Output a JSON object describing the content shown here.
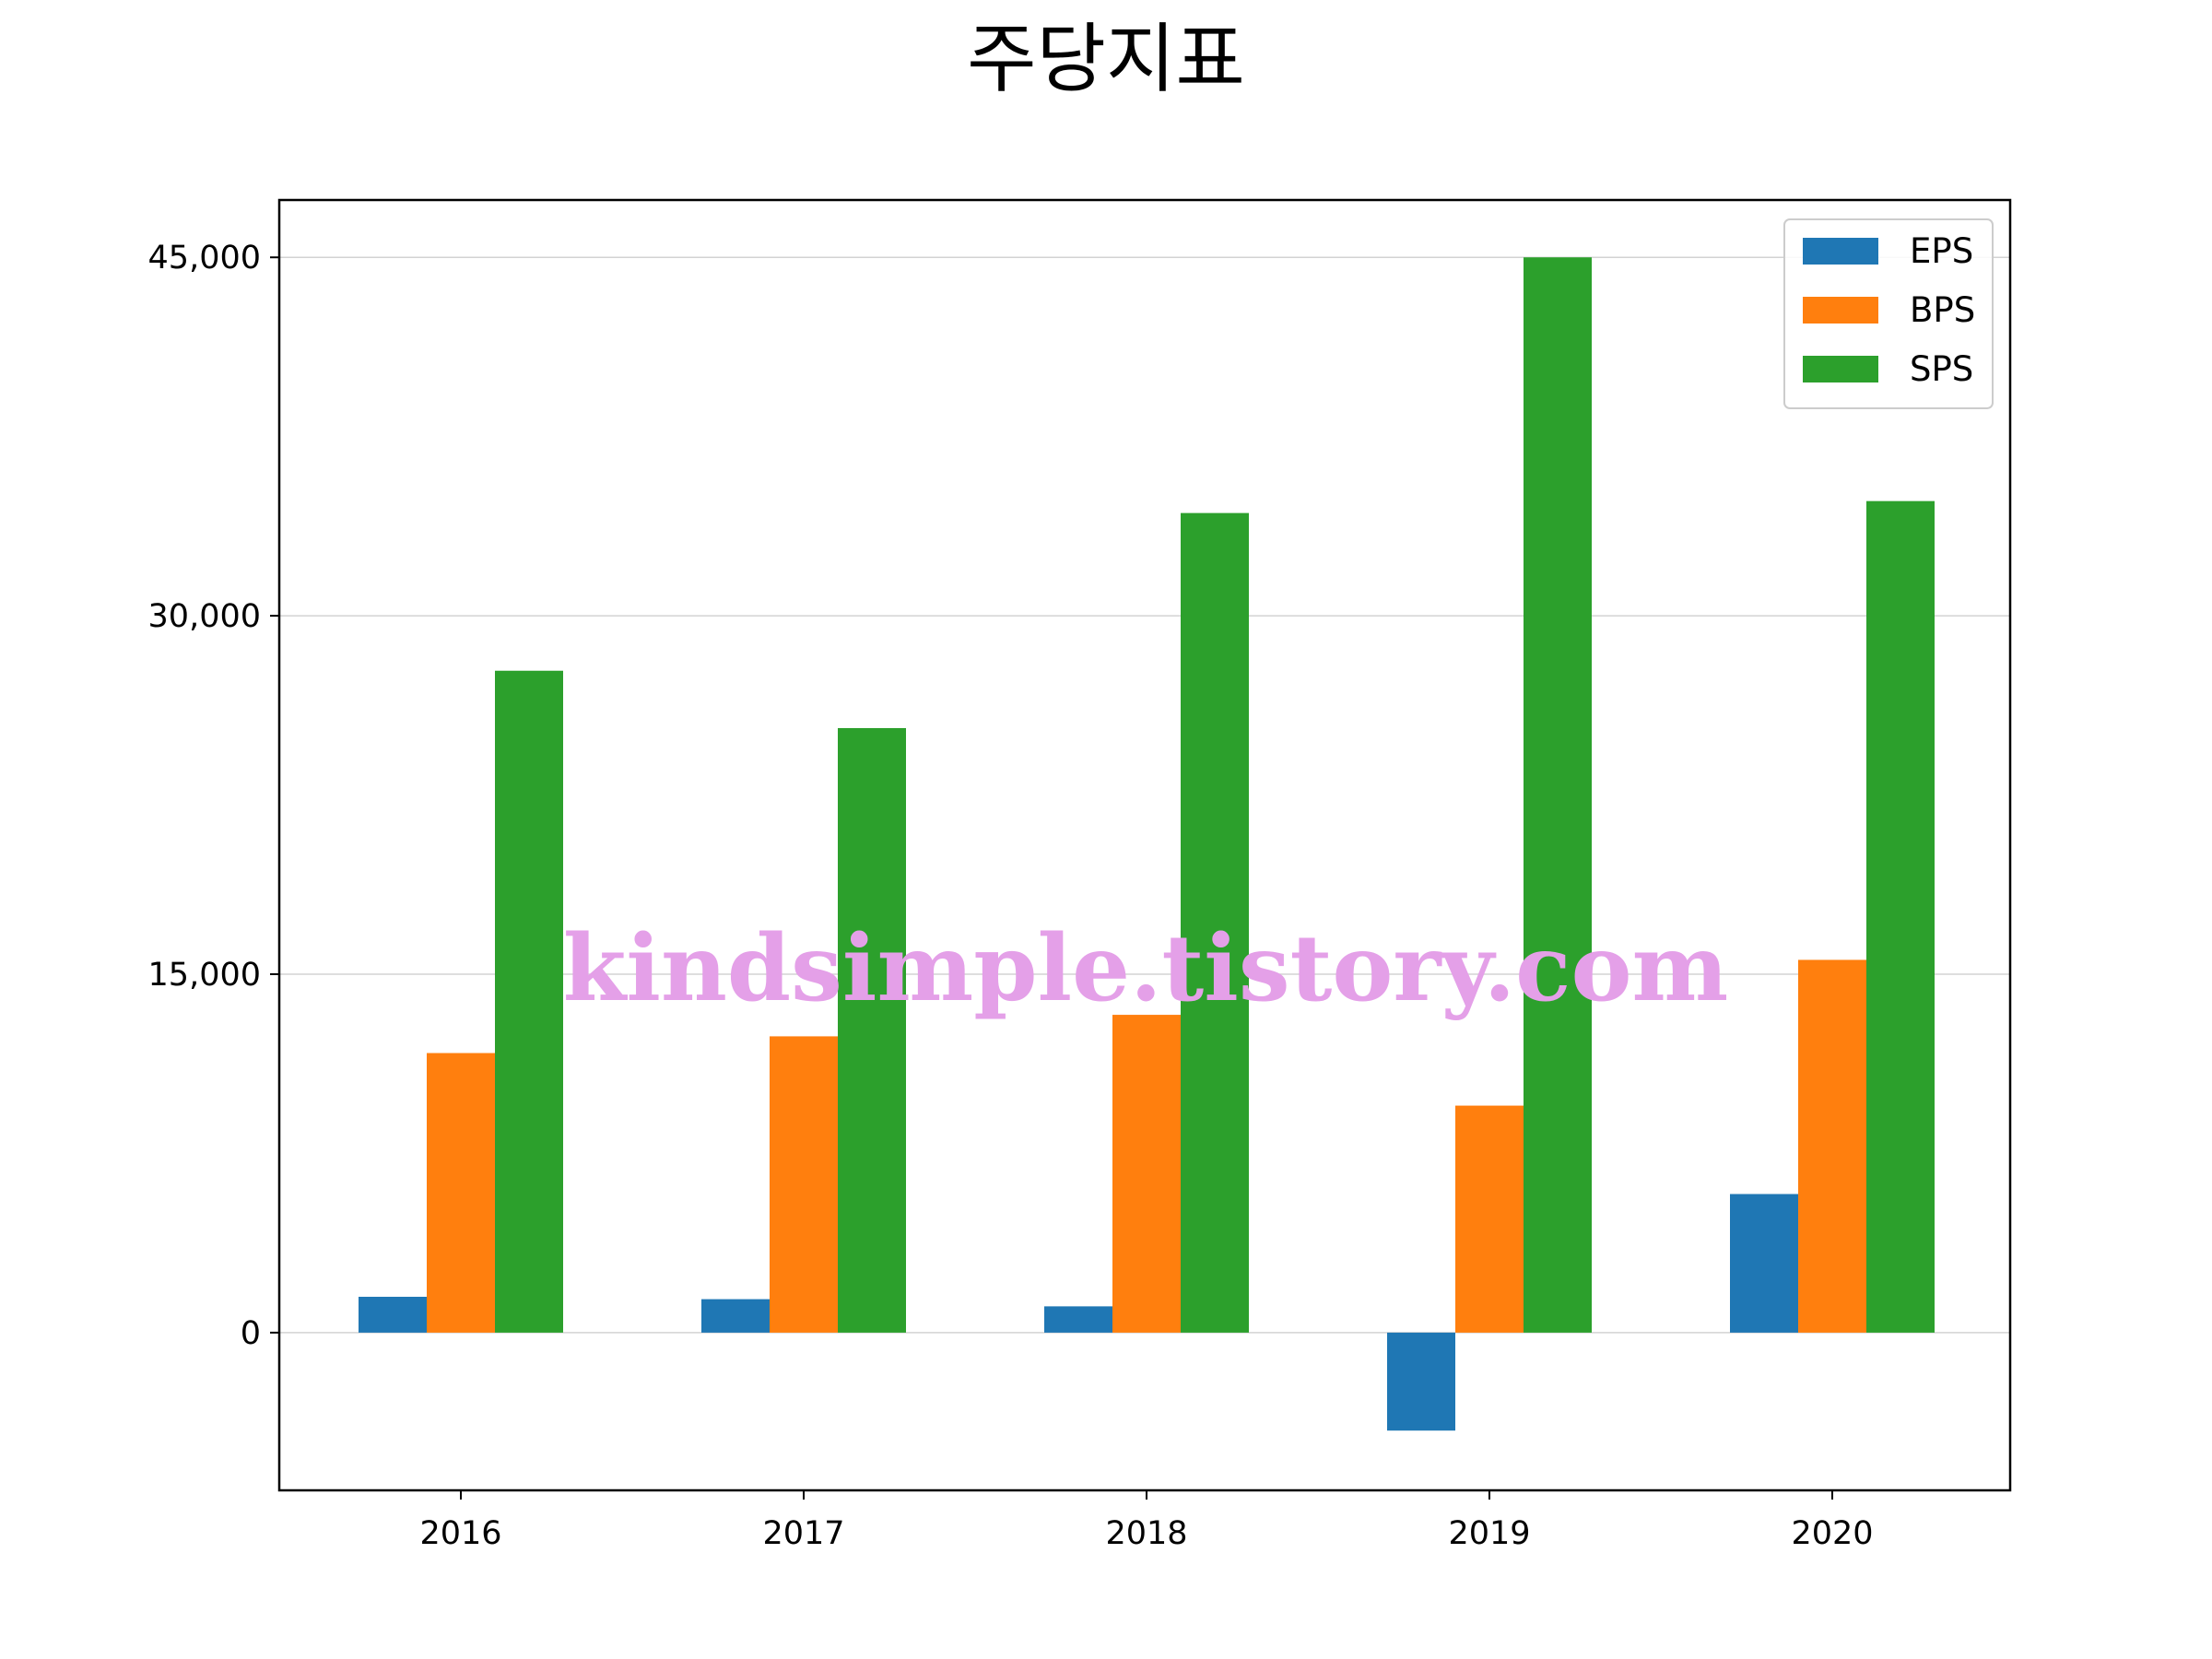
{
  "chart_data": {
    "type": "bar",
    "title": "주당지표",
    "xlabel": "",
    "ylabel": "",
    "categories": [
      "2016",
      "2017",
      "2018",
      "2019",
      "2020"
    ],
    "series": [
      {
        "name": "EPS",
        "color": "#1f77b4",
        "values": [
          1500,
          1400,
          1100,
          -4100,
          5800
        ]
      },
      {
        "name": "BPS",
        "color": "#ff7f0e",
        "values": [
          11700,
          12400,
          13300,
          9500,
          15600
        ]
      },
      {
        "name": "SPS",
        "color": "#2ca02c",
        "values": [
          27700,
          25300,
          34300,
          45000,
          34800
        ]
      }
    ],
    "ylim": [
      -6600,
      47400
    ],
    "yticks": [
      0,
      15000,
      30000,
      45000
    ],
    "ytick_labels": [
      "0",
      "15,000",
      "30,000",
      "45,000"
    ],
    "grid": "horizontal",
    "legend_position": "top-right",
    "watermark": "kindsimple.tistory.com"
  }
}
